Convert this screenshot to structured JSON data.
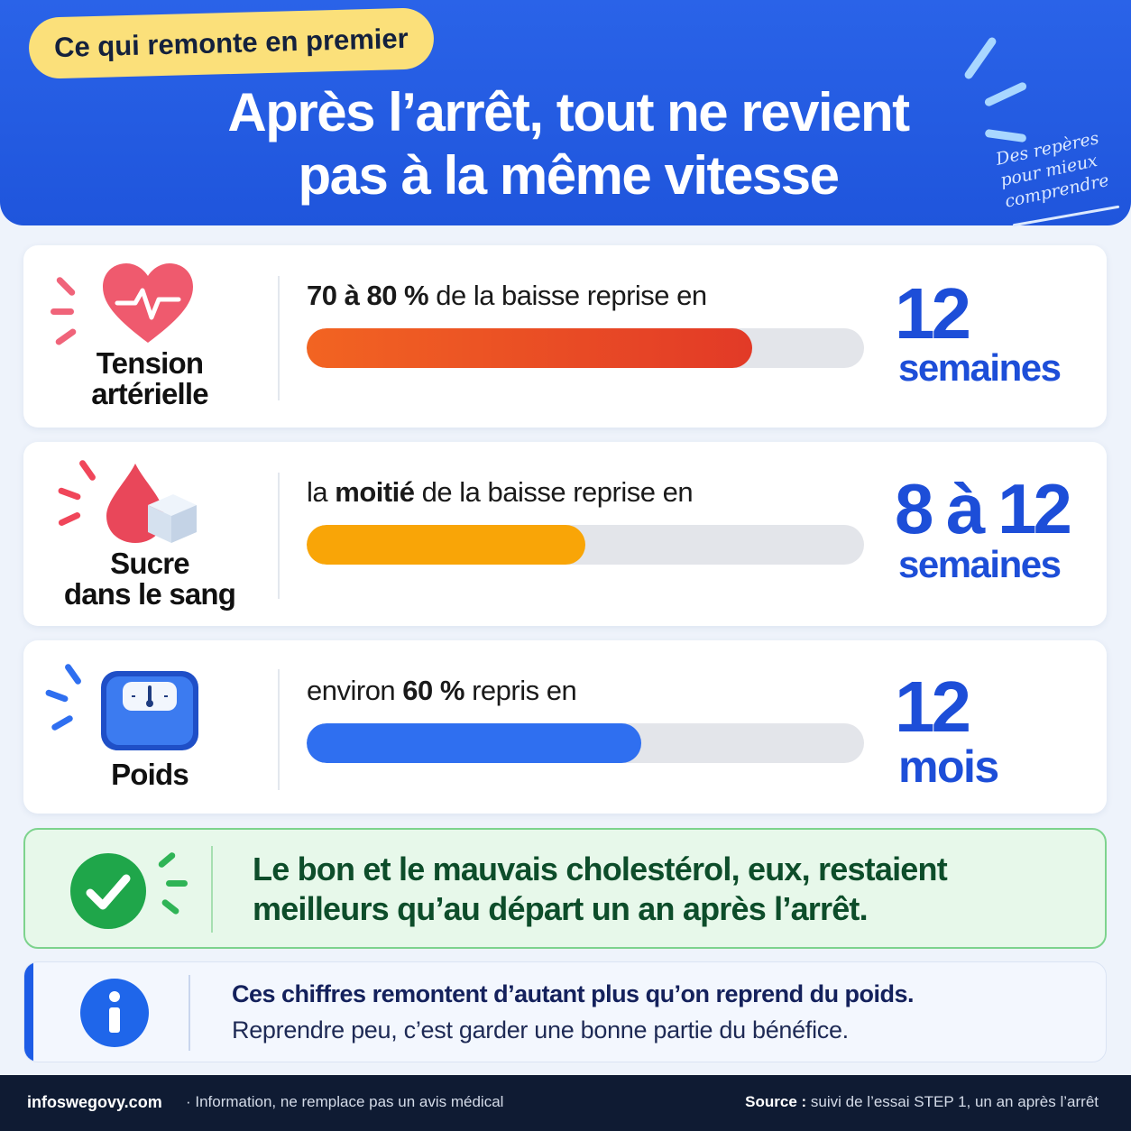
{
  "header": {
    "pill": "Ce qui remonte en premier",
    "title_line1": "Après l’arrêt, tout ne revient",
    "title_line2": "pas à la même vitesse",
    "note_line1": "Des repères",
    "note_line2": "pour mieux",
    "note_line3": "comprendre"
  },
  "metrics": [
    {
      "label_line1": "Tension",
      "label_line2": "artérielle",
      "statement_bold": "70 à 80 %",
      "statement_rest": " de la baisse reprise en",
      "progress": 0.8,
      "bar_color": "#e8472a",
      "number": "12",
      "unit": "semaines",
      "icon": "heart-pulse-icon"
    },
    {
      "label_line1": "Sucre",
      "label_line2": "dans le sang",
      "statement_pre": "la ",
      "statement_bold": "moitié",
      "statement_rest": " de la baisse reprise en",
      "progress": 0.5,
      "bar_color": "#f9a507",
      "number": "8 à 12",
      "unit": "semaines",
      "icon": "blood-drop-sugar-cube-icon"
    },
    {
      "label_line1": "Poids",
      "statement_pre": "environ ",
      "statement_bold": "60 %",
      "statement_rest": " repris en",
      "progress": 0.6,
      "bar_color": "#2f6ff0",
      "number": "12",
      "unit": "mois",
      "icon": "scale-icon"
    }
  ],
  "green_callout": {
    "line1": "Le bon et le mauvais cholestérol, eux, restaient",
    "line2": "meilleurs qu’au départ un an après l’arrêt.",
    "icon": "check-circle-icon"
  },
  "info_callout": {
    "bold": "Ces chiffres remontent d’autant plus qu’on reprend du poids.",
    "regular": "Reprendre peu, c’est garder une bonne partie du bénéfice.",
    "icon": "info-icon"
  },
  "footer": {
    "site": "infoswegovy.com",
    "disclaimer": "· Information, ne remplace pas un avis médical",
    "source_label": "Source :",
    "source_text": " suivi de l’essai STEP 1, un an après l’arrêt"
  }
}
